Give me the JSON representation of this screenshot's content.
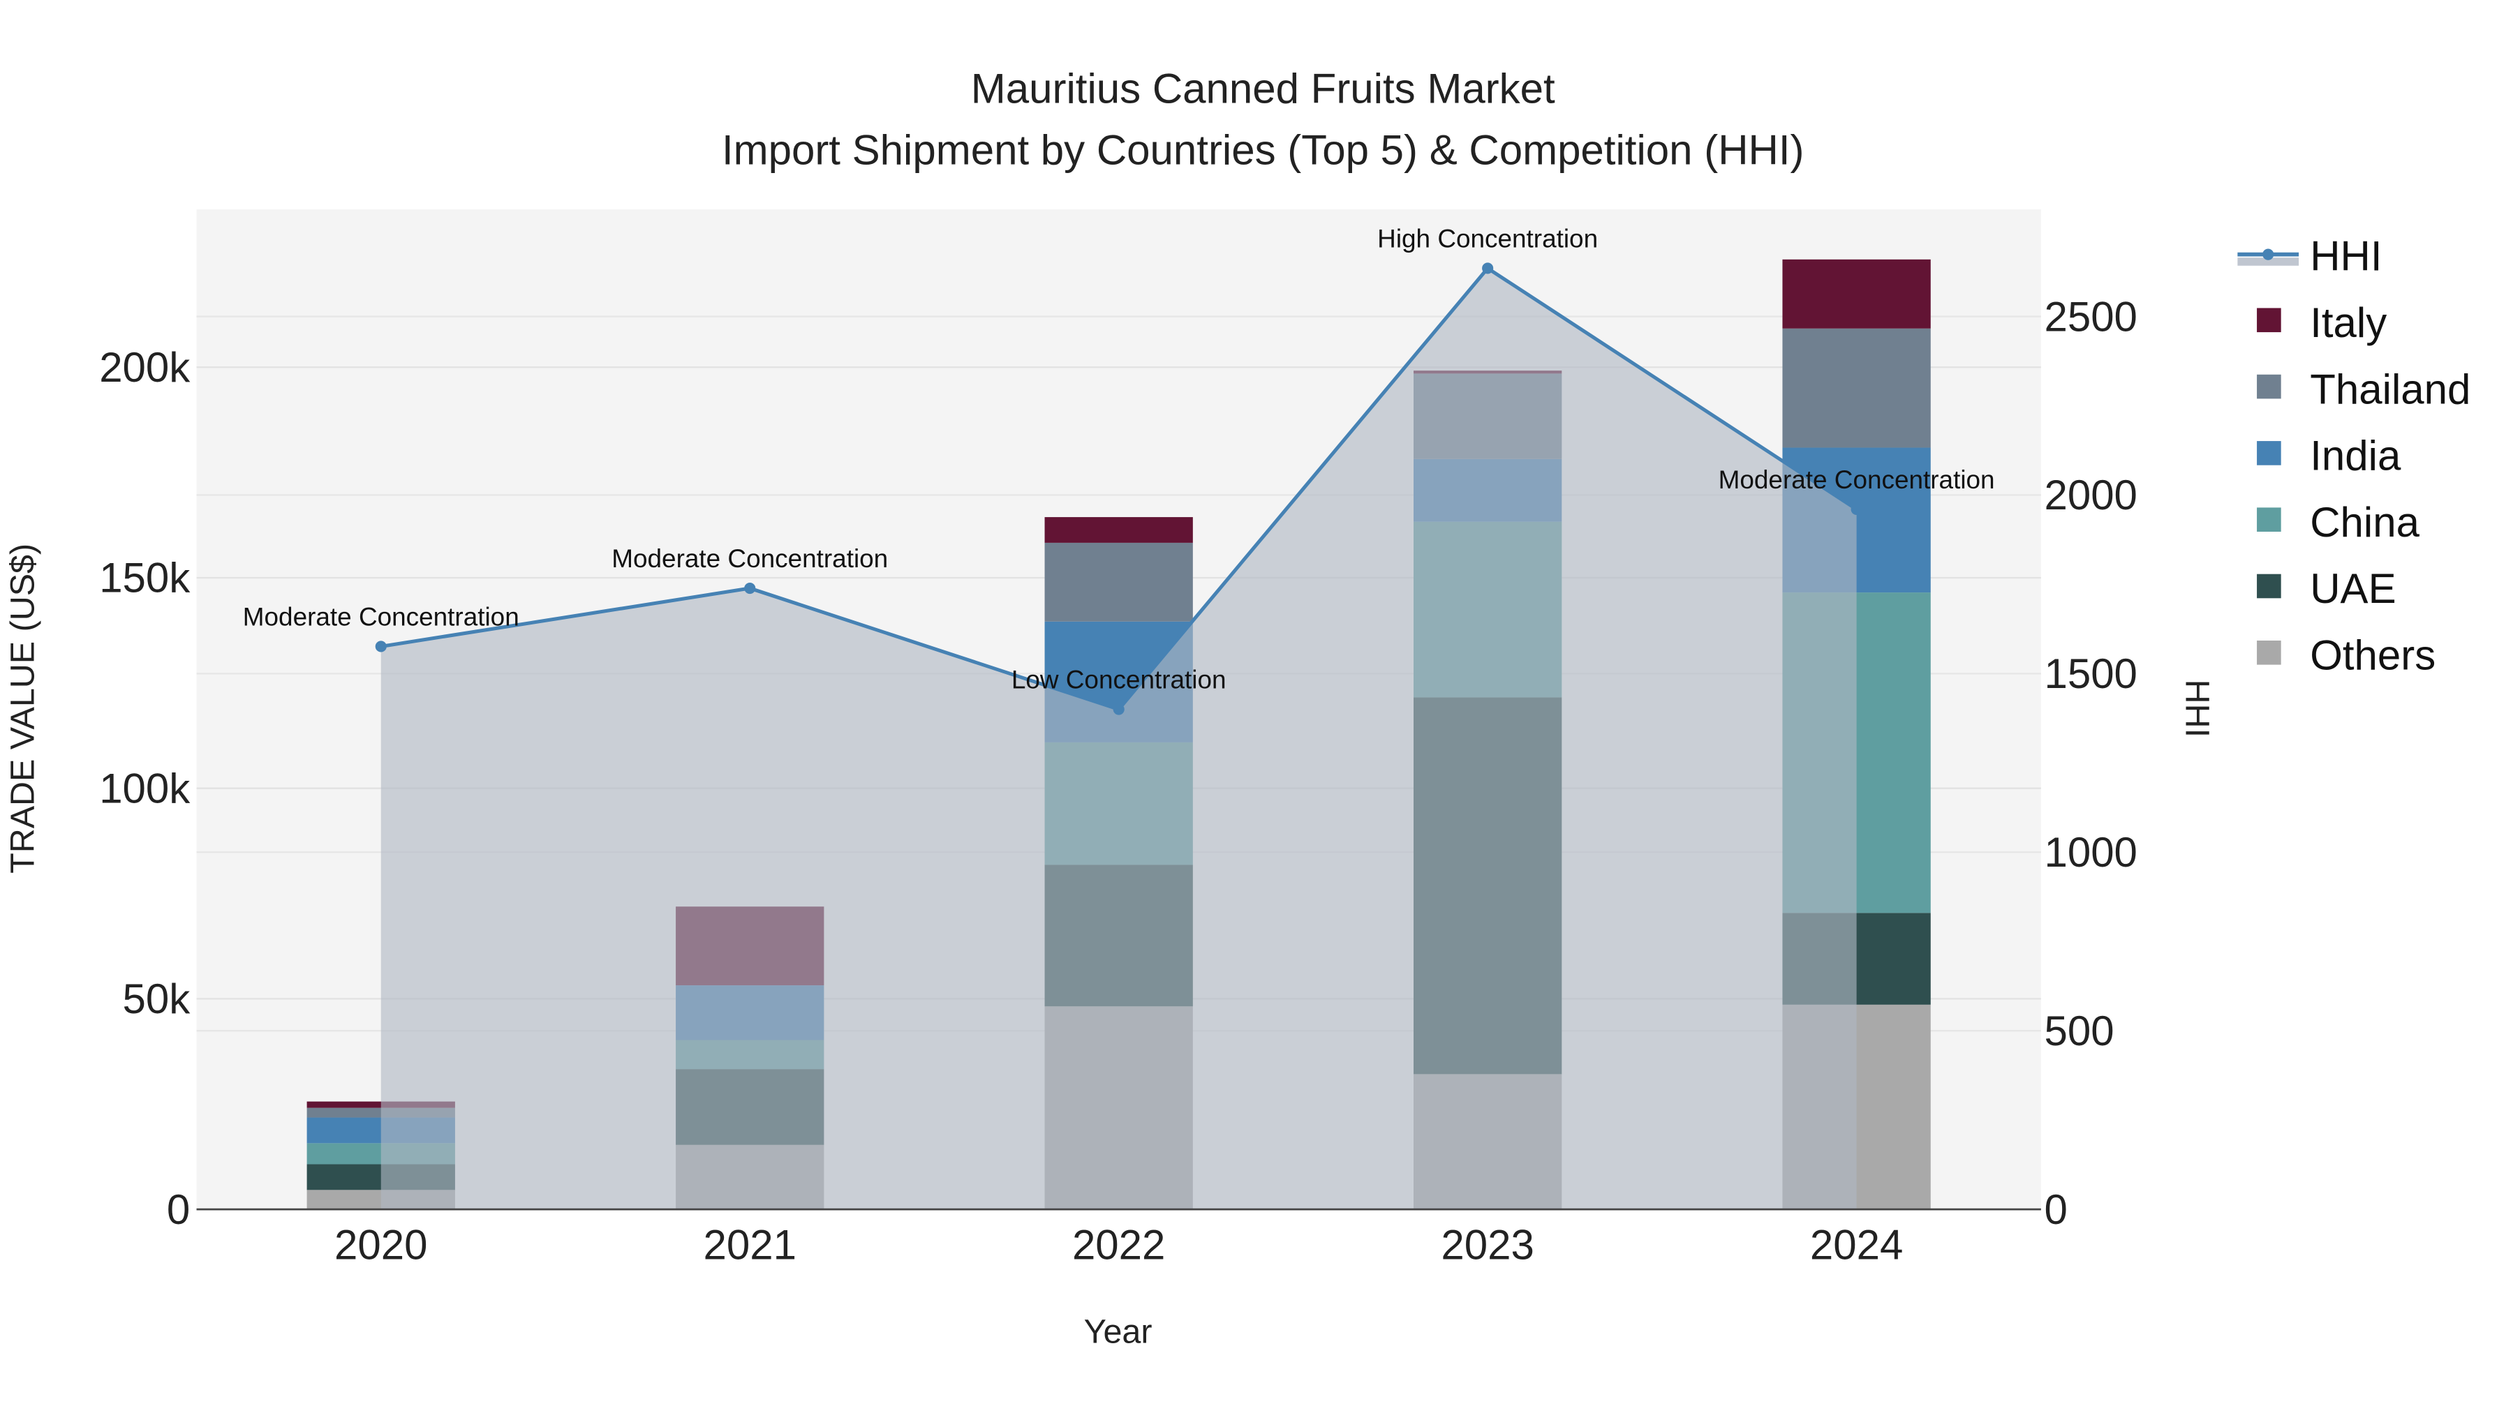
{
  "chart_data": {
    "type": "bar",
    "title": "Mauritius Canned Fruits Market",
    "subtitle": "Import Shipment by Countries (Top 5) & Competition (HHI)",
    "xlabel": "Year",
    "ylabel": "TRADE VALUE (US$)",
    "y2label": "HHI",
    "categories": [
      "2020",
      "2021",
      "2022",
      "2023",
      "2024"
    ],
    "ylim": [
      0,
      237500
    ],
    "y2lim": [
      0,
      2800
    ],
    "yticks": [
      {
        "v": 0,
        "label": "0"
      },
      {
        "v": 50000,
        "label": "50k"
      },
      {
        "v": 100000,
        "label": "100k"
      },
      {
        "v": 150000,
        "label": "150k"
      },
      {
        "v": 200000,
        "label": "200k"
      }
    ],
    "y2ticks": [
      {
        "v": 0,
        "label": "0"
      },
      {
        "v": 500,
        "label": "500"
      },
      {
        "v": 1000,
        "label": "1000"
      },
      {
        "v": 1500,
        "label": "1500"
      },
      {
        "v": 2000,
        "label": "2000"
      },
      {
        "v": 2500,
        "label": "2500"
      }
    ],
    "series": [
      {
        "name": "Others",
        "color": "#a9a9a9",
        "values": [
          4600,
          15300,
          48200,
          32100,
          48600
        ]
      },
      {
        "name": "UAE",
        "color": "#2f4f4f",
        "values": [
          6100,
          18000,
          33600,
          89500,
          21800
        ]
      },
      {
        "name": "China",
        "color": "#5f9ea0",
        "values": [
          5000,
          6900,
          29100,
          41700,
          76100
        ]
      },
      {
        "name": "India",
        "color": "#4682b4",
        "values": [
          6100,
          13000,
          28700,
          14900,
          34400
        ]
      },
      {
        "name": "Thailand",
        "color": "#708090",
        "values": [
          2300,
          0,
          18700,
          20300,
          28300
        ]
      },
      {
        "name": "Italy",
        "color": "#621434",
        "values": [
          1500,
          18700,
          6100,
          700,
          16400
        ]
      }
    ],
    "hhi": {
      "name": "HHI",
      "color": "#4682b4",
      "values": [
        1576,
        1739,
        1400,
        2635,
        1960
      ],
      "annotations": [
        "Moderate Concentration",
        "Moderate Concentration",
        "Low Concentration",
        "High Concentration",
        "Moderate Concentration"
      ]
    },
    "legend": [
      "HHI",
      "Italy",
      "Thailand",
      "India",
      "China",
      "UAE",
      "Others"
    ],
    "legend_placement": "top-right",
    "grid": true
  }
}
